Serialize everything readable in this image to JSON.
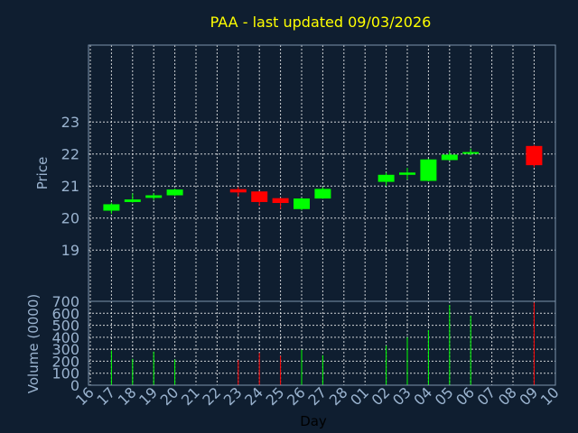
{
  "title": "PAA - last updated 09/03/2026",
  "colors": {
    "background": "#0f1e30",
    "title": "#ffff00",
    "axis_text": "#9ab3cf",
    "up": "#00ff00",
    "down": "#ff0000",
    "grid": "#ffffff",
    "frame": "#7e94ac"
  },
  "chart_data": [
    {
      "type": "candlestick",
      "ylabel": "Price",
      "ylim": [
        17.4,
        25.4
      ],
      "yticks": [
        19,
        20,
        21,
        22,
        23
      ],
      "grid": true,
      "x_dates": [
        "16",
        "17",
        "18",
        "19",
        "20",
        "21",
        "22",
        "23",
        "24",
        "25",
        "26",
        "27",
        "28",
        "01",
        "02",
        "03",
        "04",
        "05",
        "06",
        "07",
        "08",
        "09",
        "10"
      ],
      "candles": [
        {
          "day": "17",
          "open": 20.23,
          "close": 20.43,
          "high": 20.48,
          "low": 20.13
        },
        {
          "day": "18",
          "open": 20.5,
          "close": 20.58,
          "high": 20.77,
          "low": 20.48
        },
        {
          "day": "19",
          "open": 20.63,
          "close": 20.71,
          "high": 20.78,
          "low": 20.56
        },
        {
          "day": "20",
          "open": 20.71,
          "close": 20.89,
          "high": 20.92,
          "low": 20.69
        },
        {
          "day": "23",
          "open": 20.9,
          "close": 20.8,
          "high": 20.97,
          "low": 20.67
        },
        {
          "day": "24",
          "open": 20.83,
          "close": 20.5,
          "high": 20.84,
          "low": 20.38
        },
        {
          "day": "25",
          "open": 20.62,
          "close": 20.47,
          "high": 20.63,
          "low": 20.28
        },
        {
          "day": "26",
          "open": 20.28,
          "close": 20.61,
          "high": 20.63,
          "low": 20.24
        },
        {
          "day": "27",
          "open": 20.61,
          "close": 20.91,
          "high": 20.96,
          "low": 20.6
        },
        {
          "day": "02",
          "open": 21.13,
          "close": 21.35,
          "high": 21.42,
          "low": 21.0
        },
        {
          "day": "03",
          "open": 21.35,
          "close": 21.42,
          "high": 21.57,
          "low": 21.2
        },
        {
          "day": "04",
          "open": 21.16,
          "close": 21.83,
          "high": 21.85,
          "low": 21.14
        },
        {
          "day": "05",
          "open": 21.81,
          "close": 21.98,
          "high": 22.09,
          "low": 21.79
        },
        {
          "day": "06",
          "open": 22.02,
          "close": 22.06,
          "high": 22.17,
          "low": 21.96
        },
        {
          "day": "09",
          "open": 22.25,
          "close": 21.65,
          "high": 22.28,
          "low": 21.58
        }
      ]
    },
    {
      "type": "bar",
      "ylabel": "Volume (0000)",
      "xlabel": "Day",
      "ylim": [
        0,
        700
      ],
      "yticks": [
        0,
        100,
        200,
        300,
        400,
        500,
        600,
        700
      ],
      "grid": true,
      "x_dates": [
        "16",
        "17",
        "18",
        "19",
        "20",
        "21",
        "22",
        "23",
        "24",
        "25",
        "26",
        "27",
        "28",
        "01",
        "02",
        "03",
        "04",
        "05",
        "06",
        "07",
        "08",
        "09",
        "10"
      ],
      "bars": [
        {
          "day": "17",
          "value": 290,
          "direction": "up"
        },
        {
          "day": "18",
          "value": 220,
          "direction": "up"
        },
        {
          "day": "19",
          "value": 280,
          "direction": "up"
        },
        {
          "day": "20",
          "value": 215,
          "direction": "up"
        },
        {
          "day": "23",
          "value": 210,
          "direction": "down"
        },
        {
          "day": "24",
          "value": 270,
          "direction": "down"
        },
        {
          "day": "25",
          "value": 245,
          "direction": "down"
        },
        {
          "day": "26",
          "value": 295,
          "direction": "up"
        },
        {
          "day": "27",
          "value": 250,
          "direction": "up"
        },
        {
          "day": "02",
          "value": 330,
          "direction": "up"
        },
        {
          "day": "03",
          "value": 400,
          "direction": "up"
        },
        {
          "day": "04",
          "value": 460,
          "direction": "up"
        },
        {
          "day": "05",
          "value": 670,
          "direction": "up"
        },
        {
          "day": "06",
          "value": 580,
          "direction": "up"
        },
        {
          "day": "09",
          "value": 690,
          "direction": "down"
        }
      ]
    }
  ]
}
